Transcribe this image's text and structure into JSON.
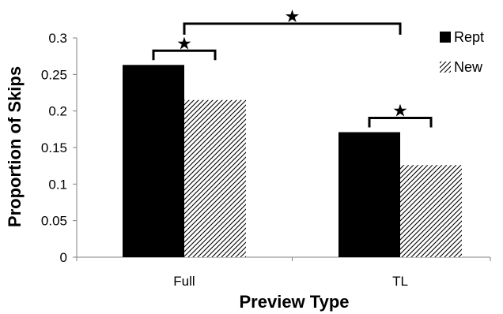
{
  "chart_data": {
    "type": "bar",
    "title": "",
    "xlabel": "Preview Type",
    "ylabel": "Proportion of Skips",
    "categories": [
      "Full",
      "TL"
    ],
    "series": [
      {
        "name": "Rept",
        "values": [
          0.263,
          0.171
        ],
        "fill": "solid",
        "color": "#000000"
      },
      {
        "name": "New",
        "values": [
          0.215,
          0.126
        ],
        "fill": "hatched",
        "color": "#000000"
      }
    ],
    "ylim": [
      0,
      0.3
    ],
    "yticks": [
      0,
      0.05,
      0.1,
      0.15,
      0.2,
      0.25,
      0.3
    ],
    "ytick_labels": [
      "0",
      "0.05",
      "0.1",
      "0.15",
      "0.2",
      "0.25",
      "0.3"
    ],
    "grid": false,
    "legend_position": "top-right",
    "significance_markers": [
      {
        "between": [
          "Full:Rept",
          "Full:New"
        ],
        "symbol": "★"
      },
      {
        "between": [
          "TL:Rept",
          "TL:New"
        ],
        "symbol": "★"
      },
      {
        "between": [
          "Full",
          "TL"
        ],
        "symbol": "★"
      }
    ]
  }
}
